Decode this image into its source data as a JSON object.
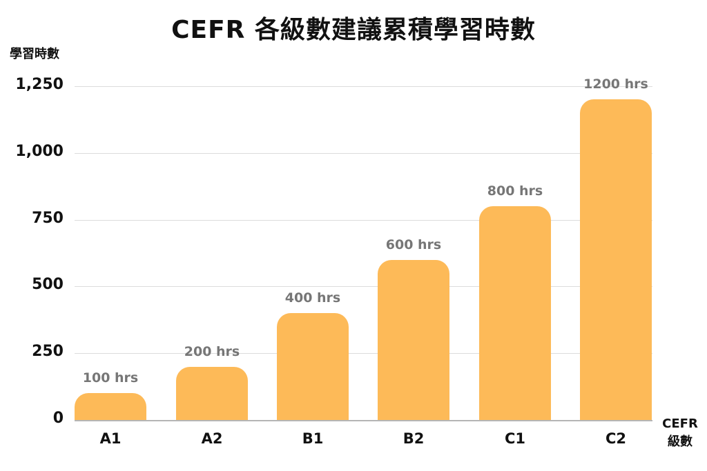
{
  "chart_data": {
    "type": "bar",
    "title": "CEFR 各級數建議累積學習時數",
    "xlabel": "CEFR 級數",
    "xlabel_lines": [
      "CEFR",
      "級數"
    ],
    "ylabel": "學習時數",
    "categories": [
      "A1",
      "A2",
      "B1",
      "B2",
      "C1",
      "C2"
    ],
    "values": [
      100,
      200,
      400,
      600,
      800,
      1200
    ],
    "data_labels": [
      "100 hrs",
      "200 hrs",
      "400 hrs",
      "600 hrs",
      "800 hrs",
      "1200 hrs"
    ],
    "ylim": [
      0,
      1250
    ],
    "yticks": [
      0,
      250,
      500,
      750,
      1000,
      1250
    ],
    "ytick_labels": [
      "0",
      "250",
      "500",
      "750",
      "1,000",
      "1,250"
    ],
    "grid": true,
    "legend": null,
    "bar_color": "#FDBA58",
    "label_color": "#767676"
  }
}
